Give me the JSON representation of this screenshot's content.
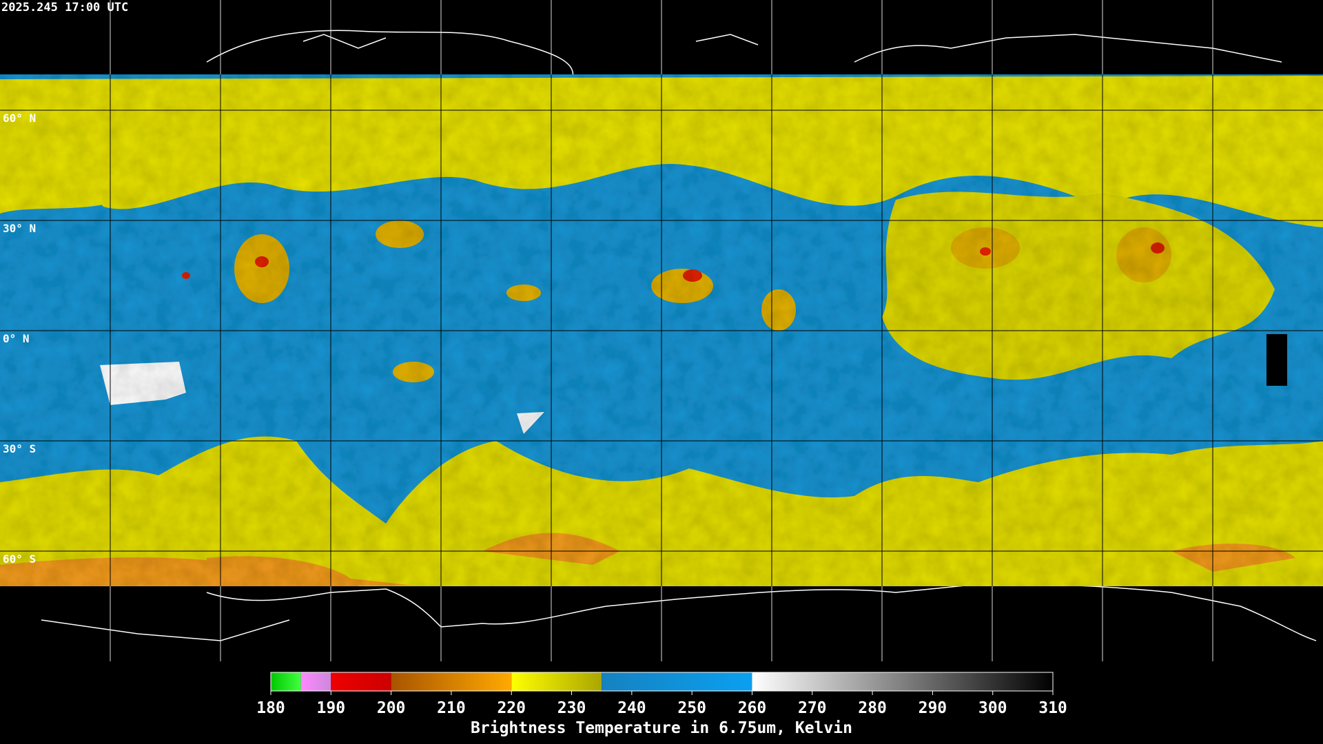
{
  "header": {
    "timestamp": "2025.245 17:00 UTC"
  },
  "lat_lines": [
    {
      "value": 60,
      "label": "60° N"
    },
    {
      "value": 30,
      "label": "30° N"
    },
    {
      "value": 0,
      "label": "0° N"
    },
    {
      "value": -30,
      "label": "30° S"
    },
    {
      "value": -60,
      "label": "60° S"
    }
  ],
  "colorbar": {
    "label": "Brightness Temperature in 6.75um, Kelvin",
    "lim": [
      180,
      310
    ],
    "ticks": [
      180,
      190,
      200,
      210,
      220,
      230,
      240,
      250,
      260,
      270,
      280,
      290,
      300,
      310
    ],
    "segments": [
      {
        "from": 180,
        "to": 185,
        "colors": [
          "#00c800",
          "#40ff40"
        ]
      },
      {
        "from": 185,
        "to": 190,
        "colors": [
          "#ff88ff",
          "#cc88dd"
        ]
      },
      {
        "from": 190,
        "to": 200,
        "colors": [
          "#ee0000",
          "#cc0000"
        ]
      },
      {
        "from": 200,
        "to": 220,
        "colors": [
          "#a85400",
          "#ffaa00"
        ]
      },
      {
        "from": 220,
        "to": 235,
        "colors": [
          "#ffff00",
          "#aaa600"
        ]
      },
      {
        "from": 235,
        "to": 260,
        "colors": [
          "#1682c0",
          "#0aa0f0"
        ]
      },
      {
        "from": 260,
        "to": 310,
        "colors": [
          "#ffffff",
          "#000000"
        ]
      }
    ]
  }
}
